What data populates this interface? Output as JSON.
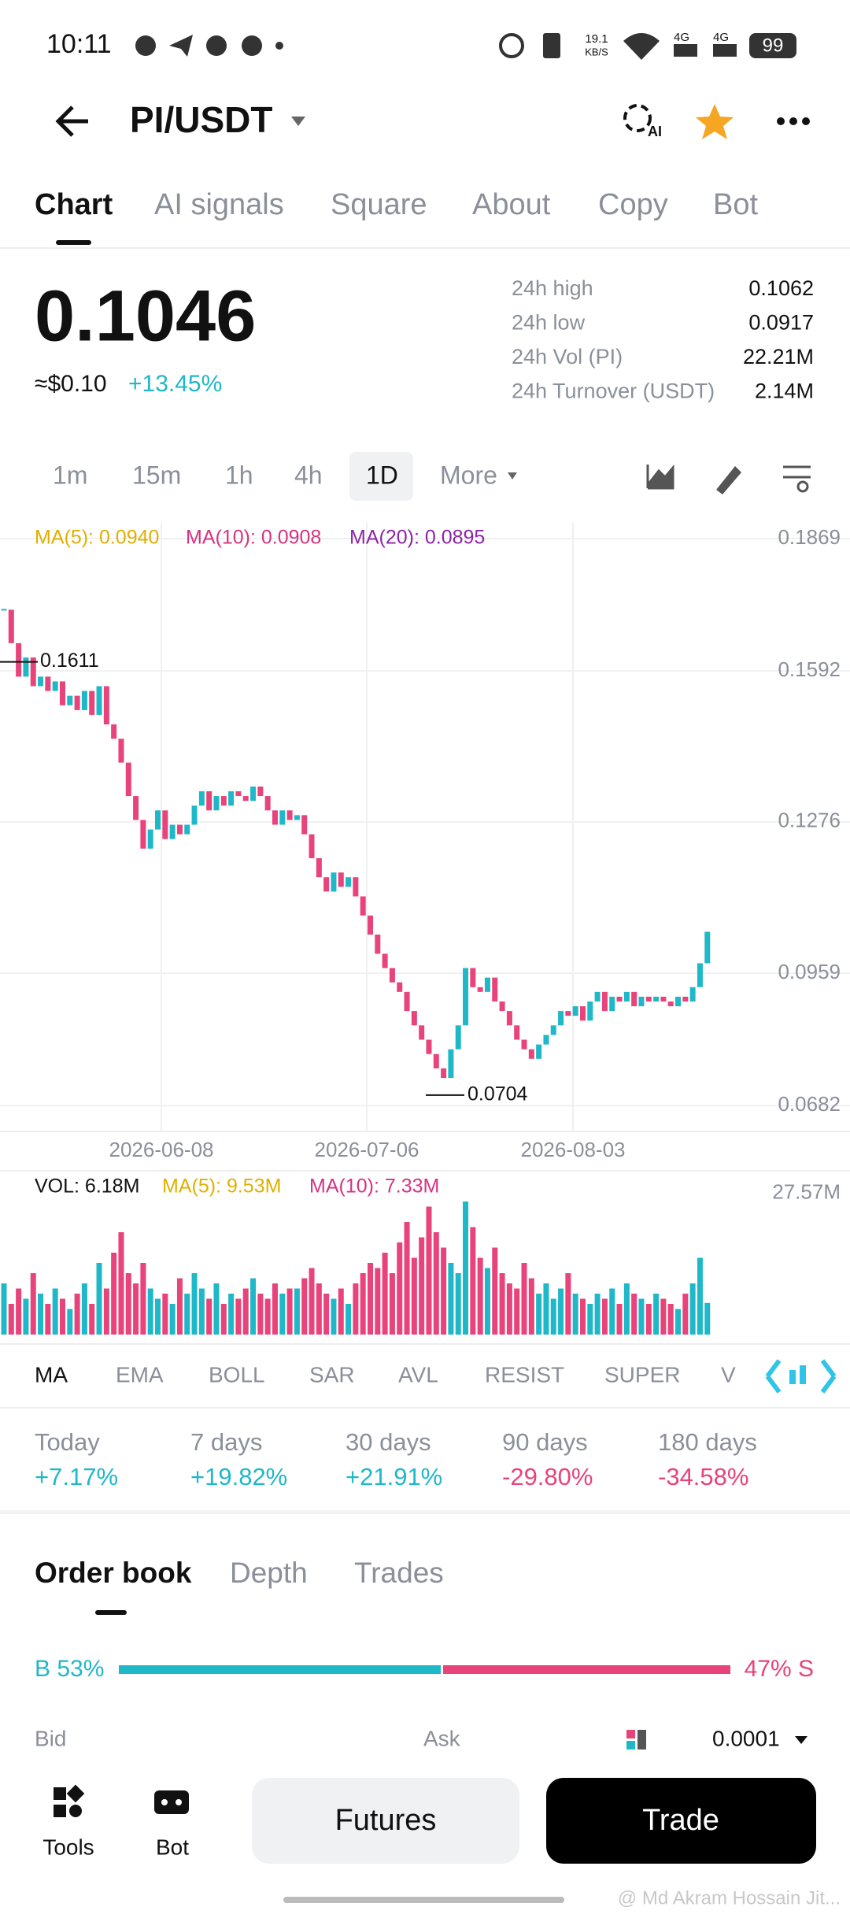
{
  "status_bar": {
    "time": "10:11",
    "net_speed": "19.1",
    "net_unit": "KB/S",
    "sig1": "4G",
    "sig2": "4G",
    "battery": "99"
  },
  "header": {
    "pair": "PI/USDT",
    "ai_badge": "AI"
  },
  "tabs": [
    "Chart",
    "AI signals",
    "Square",
    "About",
    "Copy",
    "Bot"
  ],
  "ticker": {
    "price": "0.1046",
    "usd": "≈$0.10",
    "change": "+13.45%",
    "stats": [
      {
        "label": "24h high",
        "value": "0.1062"
      },
      {
        "label": "24h low",
        "value": "0.0917"
      },
      {
        "label": "24h Vol (PI)",
        "value": "22.21M"
      },
      {
        "label": "24h Turnover (USDT)",
        "value": "2.14M"
      }
    ]
  },
  "intervals": [
    "1m",
    "15m",
    "1h",
    "4h",
    "1D",
    "More"
  ],
  "price_chart": {
    "type": "candlestick",
    "ma_labels": [
      "MA(5): 0.0940",
      "MA(10): 0.0908",
      "MA(20): 0.0895"
    ],
    "closes": [
      0.172,
      0.165,
      0.158,
      0.162,
      0.156,
      0.158,
      0.155,
      0.157,
      0.152,
      0.154,
      0.151,
      0.155,
      0.15,
      0.156,
      0.148,
      0.145,
      0.14,
      0.133,
      0.128,
      0.122,
      0.126,
      0.13,
      0.124,
      0.127,
      0.125,
      0.127,
      0.131,
      0.134,
      0.13,
      0.133,
      0.131,
      0.134,
      0.133,
      0.132,
      0.135,
      0.133,
      0.13,
      0.127,
      0.13,
      0.128,
      0.129,
      0.125,
      0.12,
      0.116,
      0.113,
      0.117,
      0.114,
      0.116,
      0.112,
      0.108,
      0.104,
      0.1,
      0.097,
      0.094,
      0.092,
      0.088,
      0.085,
      0.082,
      0.079,
      0.076,
      0.074,
      0.08,
      0.085,
      0.097,
      0.093,
      0.092,
      0.095,
      0.09,
      0.088,
      0.085,
      0.082,
      0.08,
      0.078,
      0.081,
      0.083,
      0.085,
      0.088,
      0.087,
      0.089,
      0.086,
      0.09,
      0.092,
      0.088,
      0.091,
      0.09,
      0.092,
      0.089,
      0.091,
      0.09,
      0.091,
      0.09,
      0.089,
      0.091,
      0.09,
      0.093,
      0.098,
      0.1046
    ],
    "ylim": [
      0.0628,
      0.1902
    ],
    "yticks": [
      0.1869,
      0.1592,
      0.1276,
      0.0959,
      0.0682
    ],
    "high_marker": 0.1611,
    "low_marker": 0.0704,
    "dates": [
      "2026-06-08",
      "2026-07-06",
      "2026-08-03"
    ],
    "up_color": "#1fb8c8",
    "down_color": "#e8437a"
  },
  "volume_chart": {
    "type": "bar",
    "labels": [
      "VOL: 6.18M",
      "MA(5): 9.53M",
      "MA(10): 7.33M"
    ],
    "values": [
      10,
      6,
      9,
      7,
      12,
      8,
      6,
      9,
      7,
      5,
      8,
      10,
      6,
      14,
      9,
      16,
      20,
      12,
      10,
      14,
      9,
      7,
      8,
      6,
      11,
      8,
      12,
      9,
      7,
      10,
      6,
      8,
      7,
      9,
      11,
      8,
      7,
      10,
      8,
      9,
      9,
      11,
      13,
      10,
      8,
      7,
      9,
      6,
      10,
      12,
      14,
      13,
      16,
      12,
      18,
      22,
      15,
      19,
      25,
      20,
      17,
      14,
      12,
      26,
      21,
      15,
      13,
      17,
      12,
      10,
      9,
      14,
      11,
      8,
      10,
      7,
      9,
      12,
      8,
      7,
      6,
      8,
      7,
      9,
      6,
      10,
      8,
      7,
      6,
      8,
      7,
      6,
      5,
      8,
      10,
      15,
      6.18
    ],
    "ylim": [
      0,
      30
    ],
    "yticks": [
      {
        "value": 27.57,
        "label": "27.57M"
      }
    ]
  },
  "indicators": [
    "MA",
    "EMA",
    "BOLL",
    "SAR",
    "AVL",
    "RESIST",
    "SUPER",
    "V"
  ],
  "performance": [
    {
      "period": "Today",
      "change": "+7.17%"
    },
    {
      "period": "7 days",
      "change": "+19.82%"
    },
    {
      "period": "30 days",
      "change": "+21.91%"
    },
    {
      "period": "90 days",
      "change": "-29.80%"
    },
    {
      "period": "180 days",
      "change": "-34.58%"
    }
  ],
  "order_book": {
    "tabs": [
      "Order book",
      "Depth",
      "Trades"
    ],
    "buy": "B 53%",
    "sell": "47% S",
    "bid": "Bid",
    "ask": "Ask",
    "precision": "0.0001"
  },
  "bottom_bar": {
    "tools": "Tools",
    "bot": "Bot",
    "futures": "Futures",
    "trade": "Trade"
  },
  "watermark": "@ Md Akram Hossain Jit..."
}
